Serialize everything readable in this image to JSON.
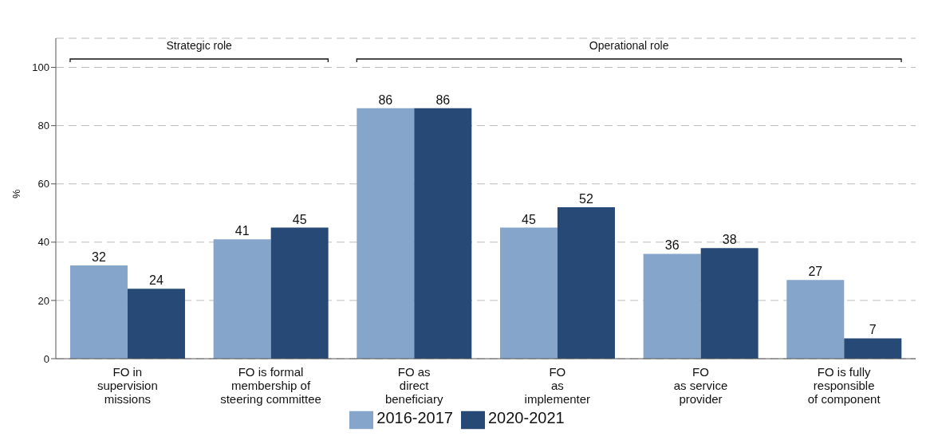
{
  "chart_data": {
    "type": "bar",
    "ylabel": "%",
    "categories": [
      "FO in\nsupervision\nmissions",
      "FO is formal\nmembership of\nsteering committee",
      "FO as\ndirect\nbeneficiary",
      "FO\nas\nimplementer",
      "FO\nas service\nprovider",
      "FO is fully\nresponsible\nof component"
    ],
    "series": [
      {
        "name": "2016-2017",
        "color": "#86a5ca",
        "values": [
          32,
          41,
          86,
          45,
          36,
          27
        ]
      },
      {
        "name": "2020-2021",
        "color": "#264a75",
        "values": [
          24,
          45,
          86,
          52,
          38,
          7
        ]
      }
    ],
    "ylim": [
      0,
      110
    ],
    "yticks": [
      0,
      20,
      40,
      60,
      80,
      100
    ],
    "grid": "y",
    "legend": "bottom",
    "data_labels": true,
    "annotations": [
      "Strategic role",
      "Operational role"
    ]
  }
}
